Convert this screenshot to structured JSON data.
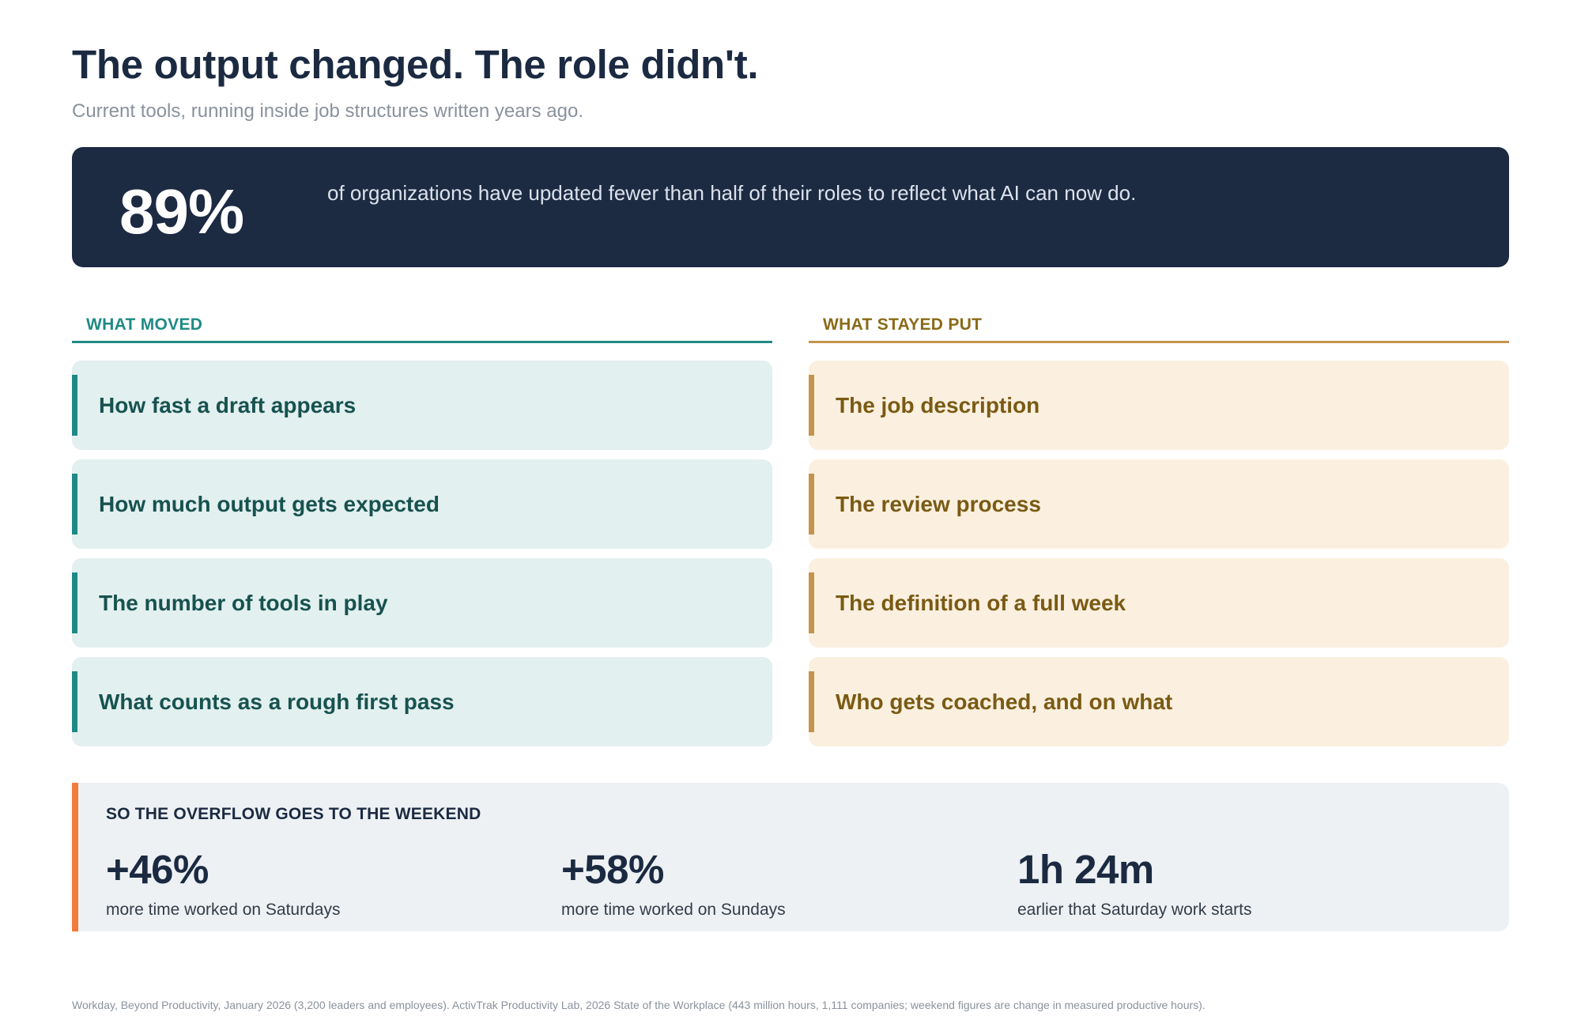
{
  "header": {
    "title": "The output changed. The role didn't.",
    "subtitle": "Current tools, running inside job structures written years ago."
  },
  "hero": {
    "stat": "89%",
    "text": "of organizations have updated fewer than half of their roles to reflect what AI can now do."
  },
  "moved": {
    "heading": "WHAT MOVED",
    "items": [
      "How fast a draft appears",
      "How much output gets expected",
      "The number of tools in play",
      "What counts as a rough first pass"
    ]
  },
  "stayed": {
    "heading": "WHAT STAYED PUT",
    "items": [
      "The job description",
      "The review process",
      "The definition of a full week",
      "Who gets coached, and on what"
    ]
  },
  "overflow": {
    "heading": "SO THE OVERFLOW GOES TO THE WEEKEND",
    "stats": [
      {
        "value": "+46%",
        "label": "more time worked on Saturdays"
      },
      {
        "value": "+58%",
        "label": "more time worked on Sundays"
      },
      {
        "value": "1h 24m",
        "label": "earlier that Saturday work starts"
      }
    ]
  },
  "footnote": "Workday, Beyond Productivity, January 2026 (3,200 leaders and employees).  ActivTrak Productivity Lab, 2026 State of the Workplace (443 million hours, 1,111 companies; weekend figures are change in measured productive hours).",
  "colors": {
    "navy": "#1c2a42",
    "teal": "#1f8a85",
    "gold": "#c4944f",
    "orange": "#ef7c3a"
  }
}
